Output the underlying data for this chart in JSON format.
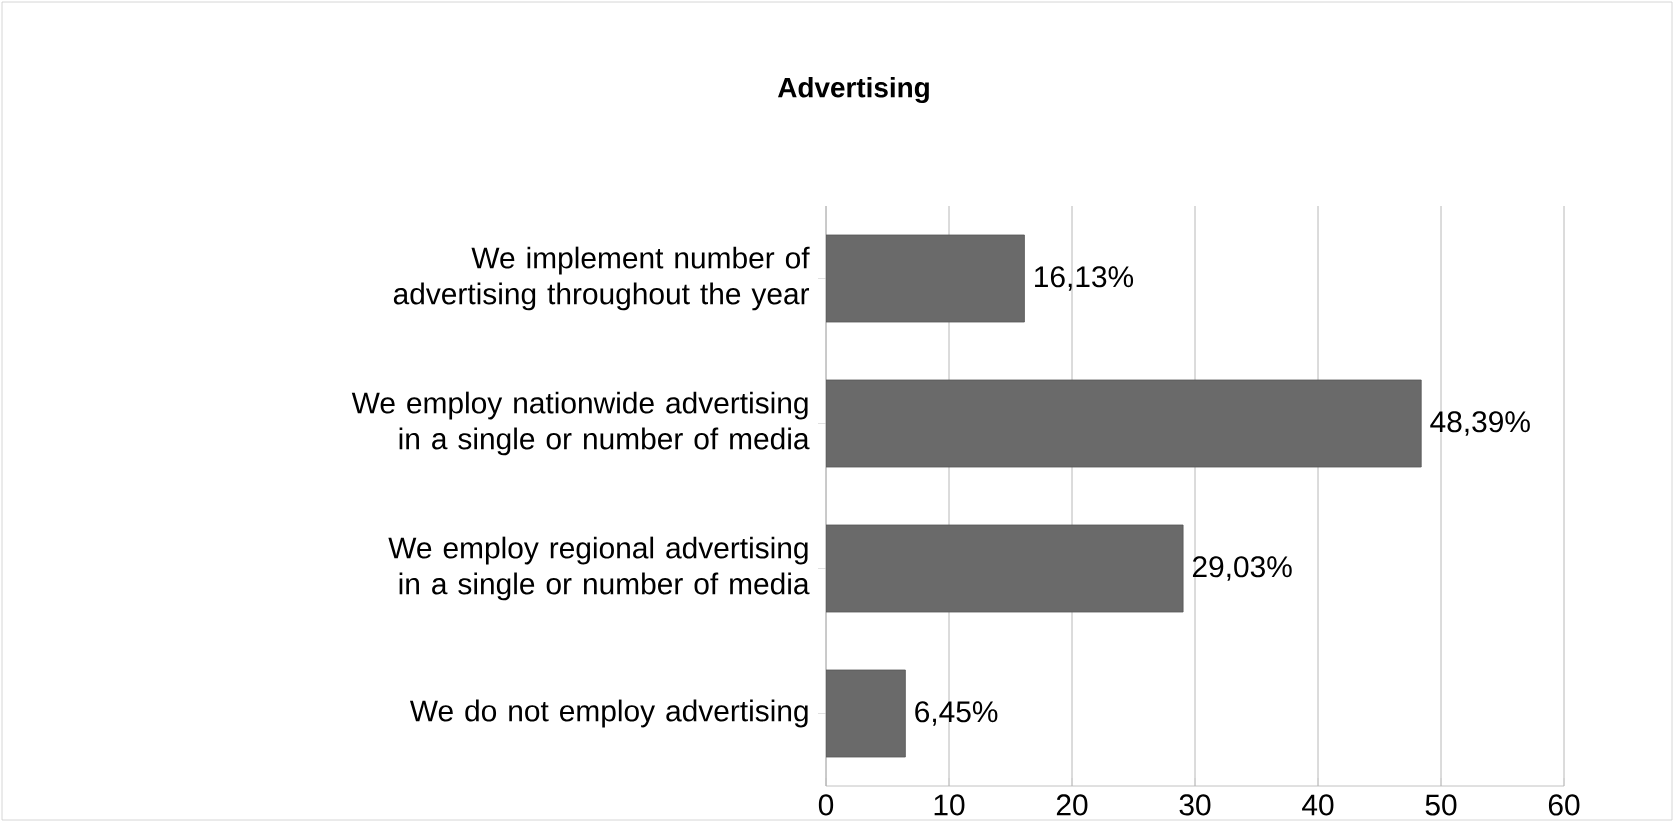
{
  "chart_data": {
    "type": "bar",
    "orientation": "horizontal",
    "title": "Advertising",
    "categories": [
      "We implement number of advertising throughout the year",
      "We employ nationwide advertising in a single or number of media",
      "We employ regional advertising in a single or number of media",
      "We do not employ advertising"
    ],
    "values": [
      16.13,
      48.39,
      29.03,
      6.45
    ],
    "value_labels": [
      "16,13%",
      "48,39%",
      "29,03%",
      "6,45%"
    ],
    "color": "#6a6a6a",
    "xlim": [
      0,
      60
    ],
    "xticks": [
      0,
      10,
      20,
      30,
      40,
      50,
      60
    ],
    "grid": "x"
  }
}
